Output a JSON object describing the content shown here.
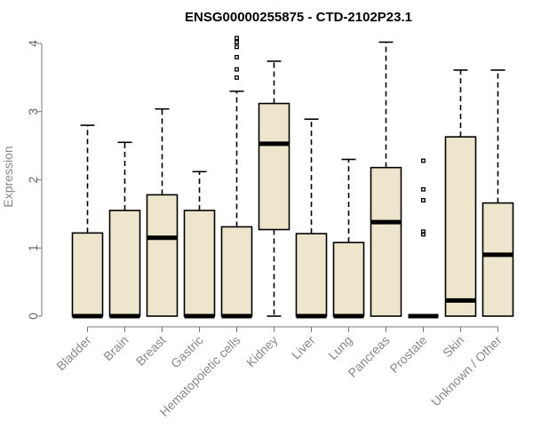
{
  "chart_data": {
    "type": "boxplot",
    "title": "ENSG00000255875 - CTD-2102P23.1",
    "ylabel": "Expression",
    "xlabel": "",
    "ylim": [
      0,
      4
    ],
    "yticks": [
      0,
      1,
      2,
      3,
      4
    ],
    "box_color": "#ede6cc",
    "categories": [
      "Bladder",
      "Brain",
      "Breast",
      "Gastric",
      "Hematopoietic cells",
      "Kidney",
      "Liver",
      "Lung",
      "Pancreas",
      "Prostate",
      "Skin",
      "Unknown / Other"
    ],
    "boxes": [
      {
        "min": 0,
        "q1": 0,
        "median": 0,
        "q3": 1.22,
        "max": 2.8,
        "outliers": []
      },
      {
        "min": 0,
        "q1": 0,
        "median": 0,
        "q3": 1.55,
        "max": 2.55,
        "outliers": []
      },
      {
        "min": 0,
        "q1": 0,
        "median": 1.15,
        "q3": 1.78,
        "max": 3.04,
        "outliers": []
      },
      {
        "min": 0,
        "q1": 0,
        "median": 0,
        "q3": 1.55,
        "max": 2.12,
        "outliers": []
      },
      {
        "min": 0,
        "q1": 0,
        "median": 0,
        "q3": 1.31,
        "max": 3.3,
        "outliers": [
          3.5,
          3.62,
          3.8,
          3.95,
          4.02,
          4.08
        ]
      },
      {
        "min": 0,
        "q1": 1.27,
        "median": 2.53,
        "q3": 3.12,
        "max": 3.74,
        "outliers": []
      },
      {
        "min": 0,
        "q1": 0,
        "median": 0,
        "q3": 1.21,
        "max": 2.89,
        "outliers": []
      },
      {
        "min": 0,
        "q1": 0,
        "median": 0,
        "q3": 1.08,
        "max": 2.3,
        "outliers": []
      },
      {
        "min": 0,
        "q1": 0,
        "median": 1.38,
        "q3": 2.18,
        "max": 4.02,
        "outliers": []
      },
      {
        "min": 0,
        "q1": 0,
        "median": 0,
        "q3": 0,
        "max": 0,
        "outliers": [
          1.2,
          1.24,
          1.7,
          1.86,
          2.28
        ]
      },
      {
        "min": 0,
        "q1": 0,
        "median": 0.23,
        "q3": 2.63,
        "max": 3.61,
        "outliers": []
      },
      {
        "min": 0,
        "q1": 0,
        "median": 0.9,
        "q3": 1.66,
        "max": 3.61,
        "outliers": []
      }
    ]
  }
}
